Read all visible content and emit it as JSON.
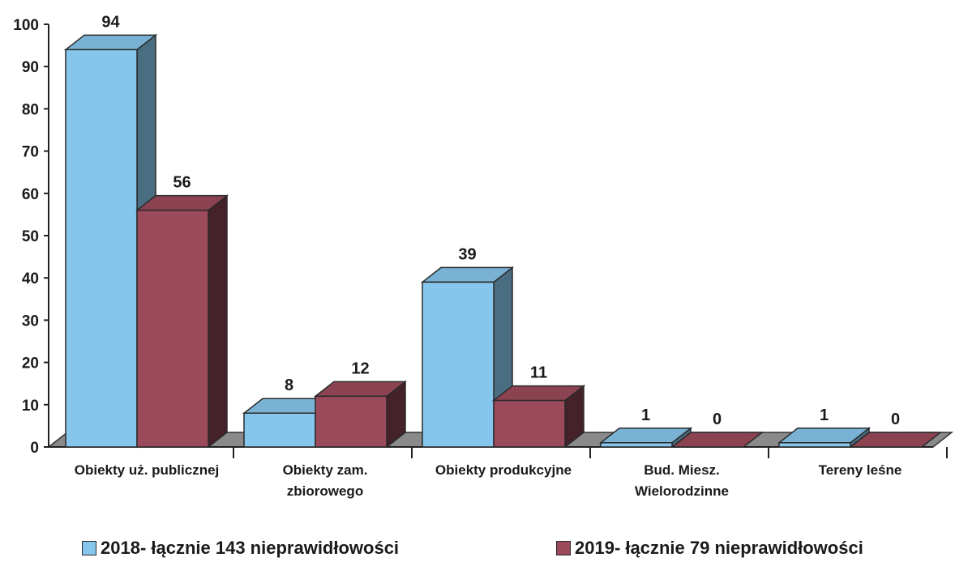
{
  "chart_data": {
    "type": "bar",
    "title": "",
    "xlabel": "",
    "ylabel": "",
    "ylim": [
      0,
      100
    ],
    "yticks": [
      0,
      10,
      20,
      30,
      40,
      50,
      60,
      70,
      80,
      90,
      100
    ],
    "categories": [
      [
        "Obiekty uż. publicznej"
      ],
      [
        "Obiekty zam.",
        "zbiorowego"
      ],
      [
        "Obiekty produkcyjne"
      ],
      [
        "Bud. Miesz.",
        "Wielorodzinne"
      ],
      [
        "Tereny leśne"
      ]
    ],
    "series": [
      {
        "name": "2018- łącznie 143 nieprawidłowości",
        "values": [
          94,
          8,
          39,
          1,
          1
        ],
        "color": "#86c6ec"
      },
      {
        "name": "2019- łącznie 79 nieprawidłowości",
        "values": [
          56,
          12,
          11,
          0,
          0
        ],
        "color": "#9a4a5a"
      }
    ],
    "grid": false,
    "legend": "bottom",
    "style": "3d-columns"
  }
}
